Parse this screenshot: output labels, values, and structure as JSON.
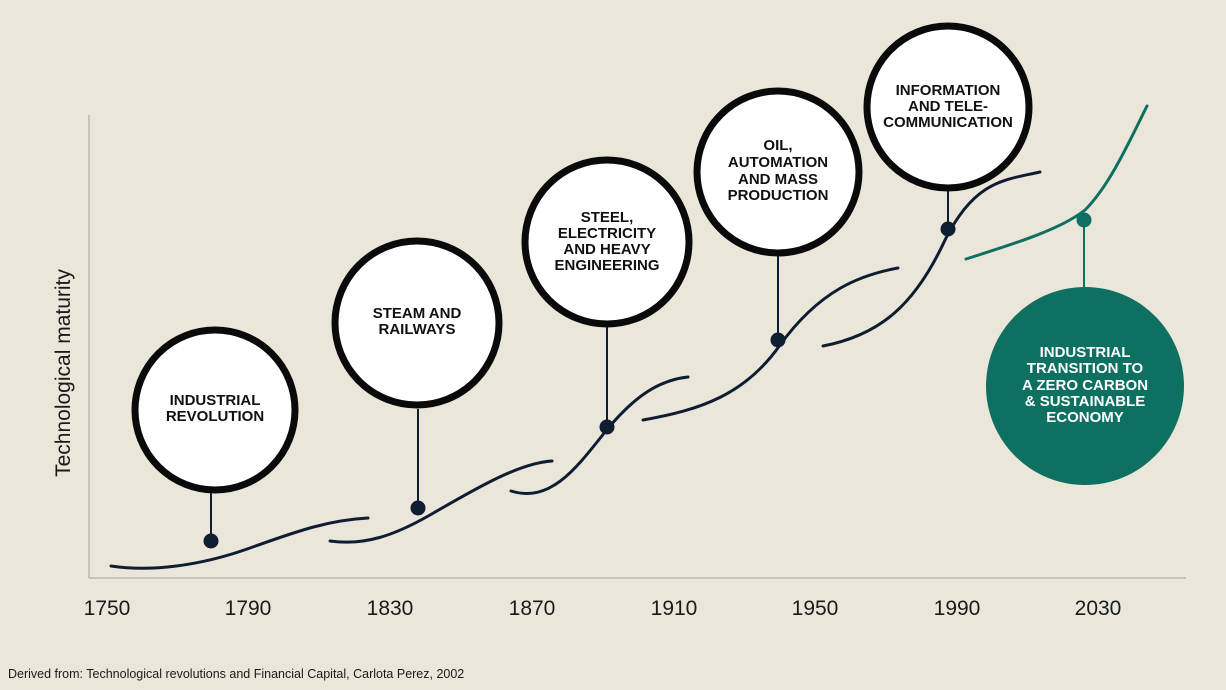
{
  "y_axis_label": "Technological maturity",
  "x_axis": {
    "ticks": [
      "1750",
      "1790",
      "1830",
      "1870",
      "1910",
      "1950",
      "1990",
      "2030"
    ]
  },
  "waves": [
    {
      "name": "industrial-revolution",
      "lines": [
        "INDUSTRIAL",
        "REVOLUTION"
      ]
    },
    {
      "name": "steam-and-railways",
      "lines": [
        "STEAM AND",
        "RAILWAYS"
      ]
    },
    {
      "name": "steel-electricity",
      "lines": [
        "STEEL,",
        "ELECTRICITY",
        "AND HEAVY",
        "ENGINEERING"
      ]
    },
    {
      "name": "oil-automation",
      "lines": [
        "OIL,",
        "AUTOMATION",
        "AND MASS",
        "PRODUCTION"
      ]
    },
    {
      "name": "information-telecom",
      "lines": [
        "INFORMATION",
        "AND TELE-",
        "COMMUNICATION"
      ]
    },
    {
      "name": "zero-carbon",
      "lines": [
        "INDUSTRIAL",
        "TRANSITION TO",
        "A ZERO CARBON",
        "& SUSTAINABLE",
        "ECONOMY"
      ]
    }
  ],
  "source_text": "Derived from: Technological revolutions and Financial Capital, Carlota Perez, 2002",
  "colors": {
    "background": "#ebe6da",
    "navy": "#0f1d33",
    "teal": "#0e7060",
    "axis": "#bdb8ad"
  }
}
